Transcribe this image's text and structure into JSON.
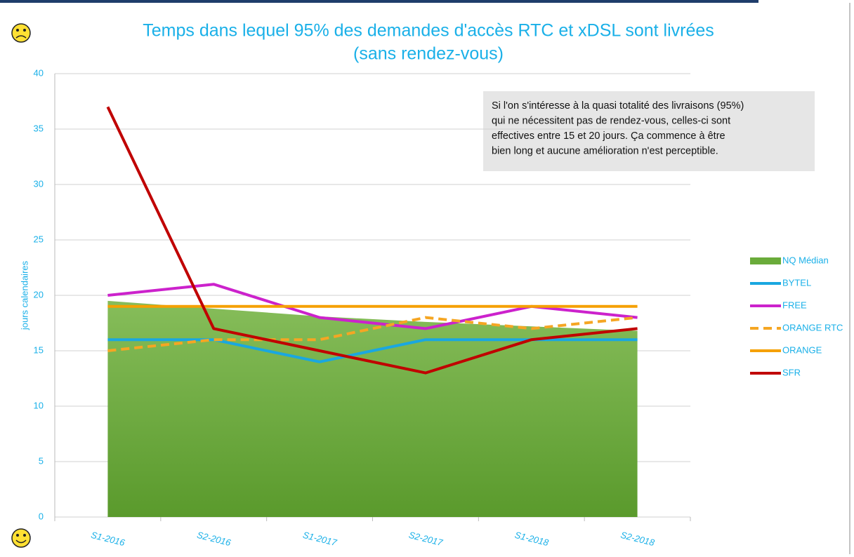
{
  "chart_data": {
    "type": "line",
    "title": "Temps dans lequel 95% des demandes d'accès RTC et xDSL sont livrées",
    "subtitle": "(sans rendez-vous)",
    "y_label": "jours calendaires",
    "annotation": [
      "Si l'on s'intéresse à la quasi totalité des livraisons (95%)",
      "qui ne nécessitent pas de rendez-vous, celles-ci sont",
      "effectives entre  15 et 20 jours. Ça commence à être",
      "bien long et aucune amélioration n'est perceptible."
    ],
    "categories": [
      "S1-2016",
      "S2-2016",
      "S1-2017",
      "S2-2017",
      "S1-2018",
      "S2-2018"
    ],
    "ylim": [
      0,
      40
    ],
    "yticks": [
      0,
      5,
      10,
      15,
      20,
      25,
      30,
      35,
      40
    ],
    "grid": true,
    "legend": "right",
    "series": [
      {
        "name": "NQ Médian",
        "color": "#6aab3a",
        "style": "area",
        "values": [
          19.5,
          18.8,
          18.1,
          17.6,
          17.2,
          16.8
        ]
      },
      {
        "name": "BYTEL",
        "color": "#1aa7e0",
        "values": [
          16,
          16,
          14,
          16,
          16,
          16
        ]
      },
      {
        "name": "FREE",
        "color": "#cc22cc",
        "values": [
          20,
          21,
          18,
          17,
          19,
          18
        ]
      },
      {
        "name": "ORANGE RTC",
        "color": "#f5a623",
        "style": "dashed",
        "values": [
          15,
          16,
          16,
          18,
          17,
          18
        ]
      },
      {
        "name": "ORANGE",
        "color": "#f5a000",
        "values": [
          19,
          19,
          19,
          19,
          19,
          19
        ]
      },
      {
        "name": "SFR",
        "color": "#c00000",
        "values": [
          37,
          17,
          15,
          13,
          16,
          17
        ]
      }
    ]
  }
}
